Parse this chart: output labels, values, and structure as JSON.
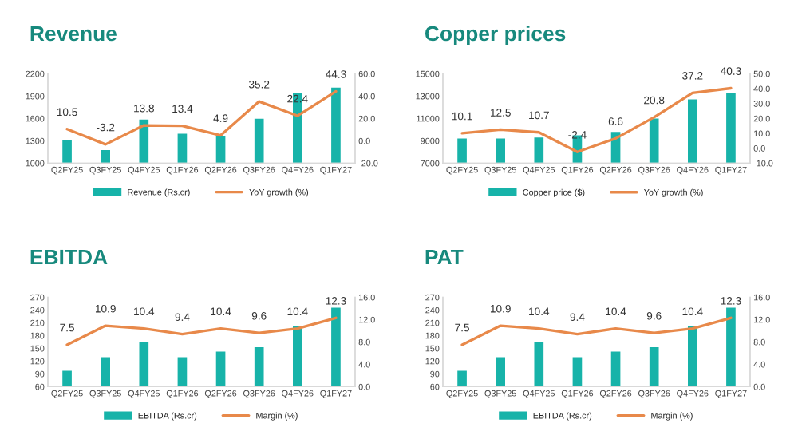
{
  "chart_data": [
    {
      "type": "bar",
      "title": "Revenue",
      "categories": [
        "Q2FY25",
        "Q3FY25",
        "Q4FY25",
        "Q1FY26",
        "Q2FY26",
        "Q3FY26",
        "Q4FY26",
        "Q1FY27"
      ],
      "series": [
        {
          "name": "Revenue (Rs.cr)",
          "color": "#17b3a9",
          "values": [
            1320,
            1190,
            1600,
            1410,
            1380,
            1610,
            1960,
            2030
          ]
        },
        {
          "name": "YoY growth (%)",
          "type": "line",
          "axis": "y2",
          "color": "#e8894a",
          "values": [
            10.5,
            -3.2,
            13.8,
            13.4,
            4.9,
            35.2,
            22.4,
            44.3
          ],
          "value_labels": [
            "10.5",
            "-3.2",
            "13.8",
            "13.4",
            "4.9",
            "35.2",
            "22.4",
            "44.3"
          ]
        }
      ],
      "ylim": [
        1000,
        2200
      ],
      "yticks": [
        1000,
        1300,
        1600,
        1900,
        2200
      ],
      "y2lim": [
        -20,
        60
      ],
      "y2ticks": [
        {
          "value": -20,
          "label": "-20.0"
        },
        {
          "value": 0,
          "label": "0.0"
        },
        {
          "value": 20,
          "label": "20.0"
        },
        {
          "value": 40,
          "label": "40.0"
        },
        {
          "value": 60,
          "label": "60.0"
        }
      ],
      "legend": "bottom",
      "grid": false,
      "line_style": "solid",
      "marker": "none"
    },
    {
      "type": "bar",
      "title": "Copper prices",
      "categories": [
        "Q2FY25",
        "Q3FY25",
        "Q4FY25",
        "Q1FY26",
        "Q2FY26",
        "Q3FY26",
        "Q4FY26",
        "Q1FY27"
      ],
      "series": [
        {
          "name": "Copper price ($)",
          "color": "#17b3a9",
          "values": [
            9300,
            9300,
            9400,
            9600,
            9900,
            11100,
            12800,
            13400
          ]
        },
        {
          "name": "YoY growth (%)",
          "type": "line",
          "axis": "y2",
          "color": "#e8894a",
          "values": [
            10.1,
            12.5,
            10.7,
            -2.4,
            6.6,
            20.8,
            37.2,
            40.3
          ],
          "value_labels": [
            "10.1",
            "12.5",
            "10.7",
            "-2.4",
            "6.6",
            "20.8",
            "37.2",
            "40.3"
          ]
        }
      ],
      "ylim": [
        7000,
        15000
      ],
      "yticks": [
        7000,
        9000,
        11000,
        13000,
        15000
      ],
      "y2lim": [
        -10,
        50
      ],
      "y2ticks": [
        {
          "value": -10,
          "label": "-10.0"
        },
        {
          "value": 0,
          "label": "0.0"
        },
        {
          "value": 10,
          "label": "10.0"
        },
        {
          "value": 20,
          "label": "20.0"
        },
        {
          "value": 30,
          "label": "30.0"
        },
        {
          "value": 40,
          "label": "40.0"
        },
        {
          "value": 50,
          "label": "50.0"
        }
      ],
      "legend": "bottom",
      "grid": false,
      "line_style": "solid",
      "marker": "none"
    },
    {
      "type": "bar",
      "title": "EBITDA",
      "categories": [
        "Q2FY25",
        "Q3FY25",
        "Q4FY25",
        "Q1FY26",
        "Q2FY26",
        "Q3FY26",
        "Q4FY26",
        "Q1FY27"
      ],
      "series": [
        {
          "name": "EBITDA (Rs.cr)",
          "color": "#17b3a9",
          "values": [
            100,
            132,
            168,
            132,
            145,
            155,
            205,
            248
          ]
        },
        {
          "name": "Margin (%)",
          "type": "line",
          "axis": "y2",
          "color": "#e8894a",
          "values": [
            7.5,
            10.9,
            10.4,
            9.4,
            10.4,
            9.6,
            10.4,
            12.3
          ],
          "value_labels": [
            "7.5",
            "10.9",
            "10.4",
            "9.4",
            "10.4",
            "9.6",
            "10.4",
            "12.3"
          ]
        }
      ],
      "ylim": [
        60,
        270
      ],
      "yticks": [
        60,
        90,
        120,
        150,
        180,
        210,
        240,
        270
      ],
      "y2lim": [
        0,
        16
      ],
      "y2ticks": [
        {
          "value": 0,
          "label": "0.0"
        },
        {
          "value": 4,
          "label": "4.0"
        },
        {
          "value": 8,
          "label": "8.0"
        },
        {
          "value": 12,
          "label": "12.0"
        },
        {
          "value": 16,
          "label": "16.0"
        }
      ],
      "legend": "bottom",
      "grid": false,
      "line_style": "solid",
      "marker": "none"
    },
    {
      "type": "bar",
      "title": "PAT",
      "categories": [
        "Q2FY25",
        "Q3FY25",
        "Q4FY25",
        "Q1FY26",
        "Q2FY26",
        "Q3FY26",
        "Q4FY26",
        "Q1FY27"
      ],
      "series": [
        {
          "name": "EBITDA (Rs.cr)",
          "color": "#17b3a9",
          "values": [
            100,
            132,
            168,
            132,
            145,
            155,
            205,
            248
          ]
        },
        {
          "name": "Margin (%)",
          "type": "line",
          "axis": "y2",
          "color": "#e8894a",
          "values": [
            7.5,
            10.9,
            10.4,
            9.4,
            10.4,
            9.6,
            10.4,
            12.3
          ],
          "value_labels": [
            "7.5",
            "10.9",
            "10.4",
            "9.4",
            "10.4",
            "9.6",
            "10.4",
            "12.3"
          ]
        }
      ],
      "ylim": [
        60,
        270
      ],
      "yticks": [
        60,
        90,
        120,
        150,
        180,
        210,
        240,
        270
      ],
      "y2lim": [
        0,
        16
      ],
      "y2ticks": [
        {
          "value": 0,
          "label": "0.0"
        },
        {
          "value": 4,
          "label": "4.0"
        },
        {
          "value": 8,
          "label": "8.0"
        },
        {
          "value": 12,
          "label": "12.0"
        },
        {
          "value": 16,
          "label": "16.0"
        }
      ],
      "legend": "bottom",
      "grid": false,
      "line_style": "solid",
      "marker": "none"
    }
  ]
}
